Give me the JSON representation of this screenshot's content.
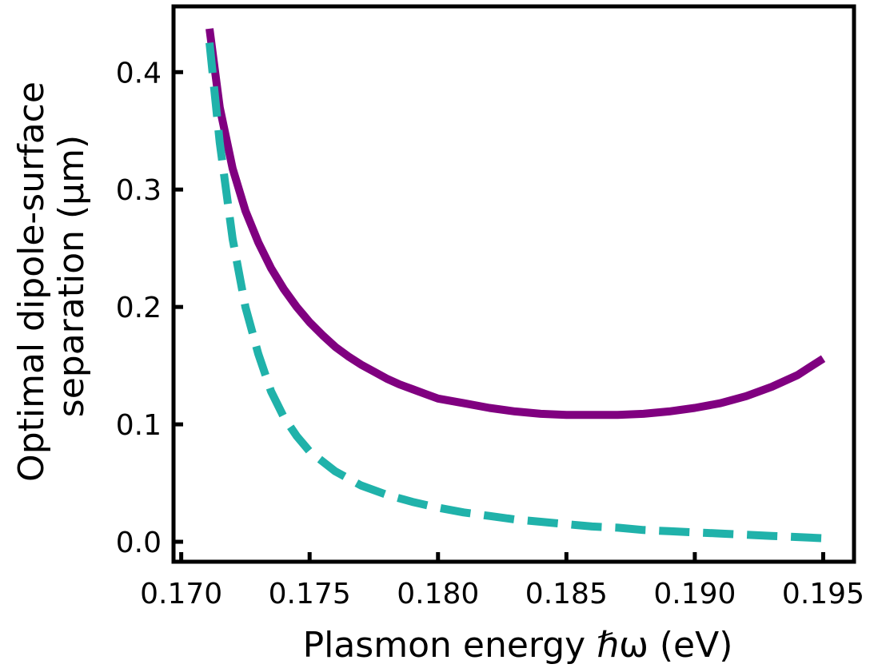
{
  "chart_data": {
    "type": "line",
    "title": "",
    "xlabel": "Plasmon energy ℏω (eV)",
    "ylabel_lines": [
      "Optimal dipole-surface",
      "separation (μm)"
    ],
    "xlim": [
      0.1697,
      0.1962
    ],
    "ylim": [
      -0.017,
      0.456
    ],
    "xticks": [
      0.17,
      0.175,
      0.18,
      0.185,
      0.19,
      0.195
    ],
    "xtick_labels": [
      "0.170",
      "0.175",
      "0.180",
      "0.185",
      "0.190",
      "0.195"
    ],
    "yticks": [
      0.0,
      0.1,
      0.2,
      0.3,
      0.4
    ],
    "ytick_labels": [
      "0.0",
      "0.1",
      "0.2",
      "0.3",
      "0.4"
    ],
    "grid": false,
    "legend": "none",
    "series": [
      {
        "color": "#800080",
        "style": "solid",
        "x": [
          0.1711,
          0.1715,
          0.172,
          0.1725,
          0.173,
          0.1735,
          0.174,
          0.1745,
          0.175,
          0.1755,
          0.176,
          0.1765,
          0.177,
          0.1775,
          0.178,
          0.1785,
          0.179,
          0.1795,
          0.18,
          0.181,
          0.182,
          0.183,
          0.184,
          0.185,
          0.186,
          0.187,
          0.188,
          0.189,
          0.19,
          0.191,
          0.192,
          0.193,
          0.194,
          0.1945,
          0.195
        ],
        "y": [
          0.437,
          0.37,
          0.318,
          0.282,
          0.255,
          0.233,
          0.215,
          0.2,
          0.187,
          0.176,
          0.166,
          0.158,
          0.151,
          0.145,
          0.139,
          0.134,
          0.13,
          0.126,
          0.122,
          0.118,
          0.114,
          0.111,
          0.109,
          0.108,
          0.108,
          0.108,
          0.109,
          0.111,
          0.114,
          0.118,
          0.124,
          0.132,
          0.142,
          0.149,
          0.156
        ]
      },
      {
        "color": "#20b2aa",
        "style": "dashed",
        "x": [
          0.1711,
          0.1715,
          0.172,
          0.1725,
          0.173,
          0.1735,
          0.174,
          0.1745,
          0.175,
          0.176,
          0.177,
          0.178,
          0.179,
          0.18,
          0.181,
          0.182,
          0.183,
          0.184,
          0.185,
          0.186,
          0.187,
          0.188,
          0.189,
          0.19,
          0.191,
          0.192,
          0.193,
          0.194,
          0.195
        ],
        "y": [
          0.425,
          0.34,
          0.258,
          0.2,
          0.16,
          0.128,
          0.106,
          0.09,
          0.077,
          0.06,
          0.048,
          0.04,
          0.034,
          0.029,
          0.025,
          0.022,
          0.019,
          0.017,
          0.015,
          0.013,
          0.012,
          0.01,
          0.009,
          0.008,
          0.007,
          0.006,
          0.005,
          0.004,
          0.003
        ]
      }
    ]
  }
}
